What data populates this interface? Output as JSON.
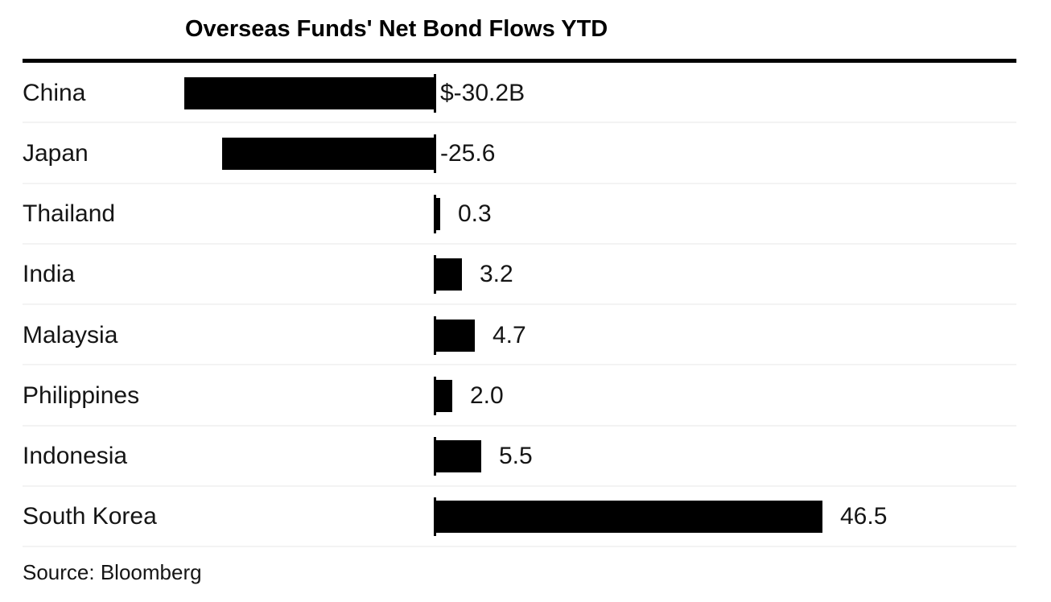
{
  "chart_data": {
    "type": "bar",
    "orientation": "horizontal",
    "title": "Overseas Funds' Net Bond Flows YTD",
    "source": "Source: Bloomberg",
    "categories": [
      "China",
      "Japan",
      "Thailand",
      "India",
      "Malaysia",
      "Philippines",
      "Indonesia",
      "South Korea"
    ],
    "values": [
      -30.2,
      -25.6,
      0.3,
      3.2,
      4.7,
      2.0,
      5.5,
      46.5
    ],
    "value_labels": [
      "$-30.2B",
      "-25.6",
      "0.3",
      "3.2",
      "4.7",
      "2.0",
      "5.5",
      "46.5"
    ],
    "unit": "USD billions",
    "baseline": 0,
    "grid": false,
    "legend": false,
    "xlim": [
      -32,
      48
    ]
  },
  "colors": {
    "background": "#ffffff",
    "bar": "#000000",
    "rule": "#000000",
    "tick": "#000000",
    "title_text": "#000000",
    "label_text": "#151515",
    "separator": "#f3f3f3"
  }
}
